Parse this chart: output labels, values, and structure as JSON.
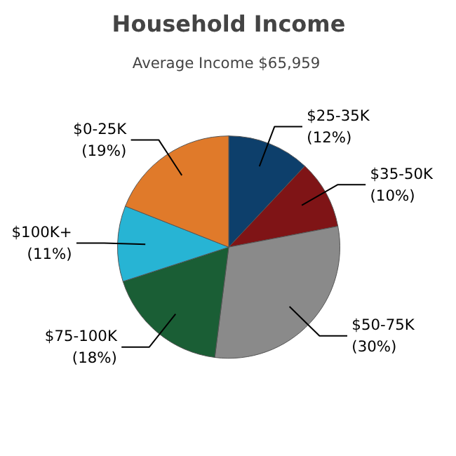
{
  "chart_data": {
    "type": "pie",
    "title": "Household Income",
    "subtitle": "Average Income  $65,959",
    "categories": [
      "$25-35K",
      "$35-50K",
      "$50-75K",
      "$75-100K",
      "$100K+",
      "$0-25K"
    ],
    "values": [
      12,
      10,
      30,
      18,
      11,
      19
    ],
    "colors": [
      "#0d3f6b",
      "#7f1416",
      "#8a8a8a",
      "#1a5e35",
      "#27b4d4",
      "#e07a2a"
    ],
    "value_labels": [
      "(12%)",
      "(10%)",
      "(30%)",
      "(18%)",
      "(11%)",
      "(19%)"
    ]
  }
}
